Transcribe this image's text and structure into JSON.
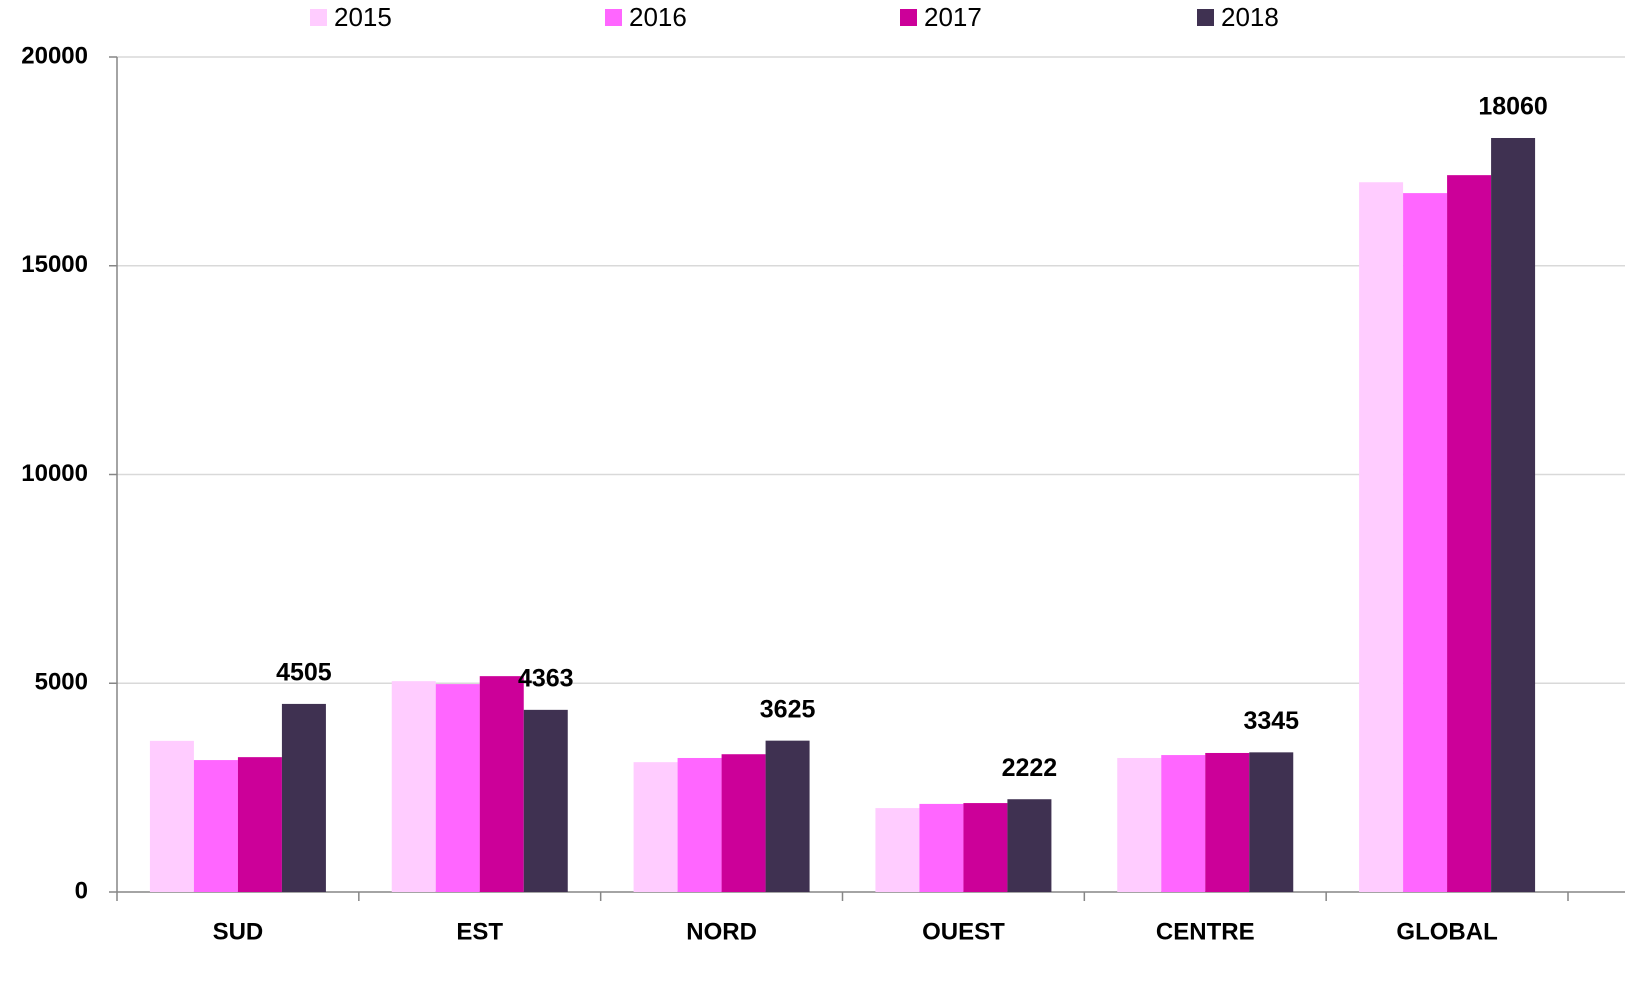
{
  "chart_data": {
    "type": "bar",
    "categories": [
      "SUD",
      "EST",
      "NORD",
      "OUEST",
      "CENTRE",
      "GLOBAL"
    ],
    "series": [
      {
        "name": "2015",
        "color": "#ffccff",
        "values": [
          3620,
          5050,
          3110,
          2010,
          3210,
          17000
        ]
      },
      {
        "name": "2016",
        "color": "#ff66ff",
        "values": [
          3160,
          4980,
          3210,
          2110,
          3280,
          16740
        ]
      },
      {
        "name": "2017",
        "color": "#cc0099",
        "values": [
          3230,
          5170,
          3300,
          2130,
          3330,
          17170
        ]
      },
      {
        "name": "2018",
        "color": "#3f3151",
        "values": [
          4505,
          4363,
          3625,
          2222,
          3345,
          18060
        ],
        "labels": true
      }
    ],
    "ylim": [
      0,
      20000
    ],
    "yticks": [
      0,
      5000,
      10000,
      15000,
      20000
    ],
    "grid": true,
    "legend": "top"
  }
}
